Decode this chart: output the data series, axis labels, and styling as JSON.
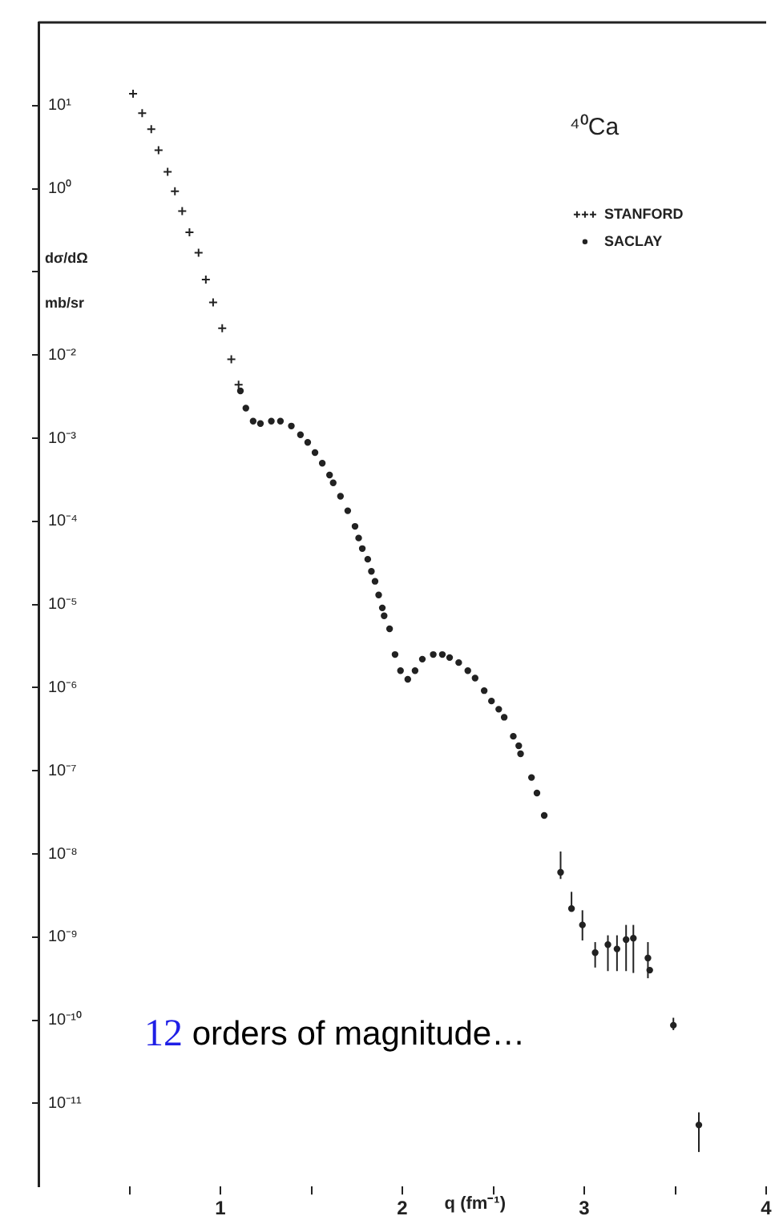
{
  "chart_data": {
    "type": "scatter",
    "title": "⁴⁰Ca",
    "xlabel": "q (fm⁻¹)",
    "ylabel": "dσ/dΩ mb/sr",
    "annotations": [
      "12 orders of magnitude…"
    ],
    "log": "y",
    "xlim": [
      0,
      4
    ],
    "ylim": [
      1e-12,
      100
    ],
    "xticks": [
      {
        "value": 0.5,
        "label": null
      },
      1,
      {
        "value": 1.5,
        "label": null
      },
      2,
      {
        "value": 2.5,
        "label": null
      },
      3,
      {
        "value": 3.5,
        "label": null
      },
      4
    ],
    "yticks": [
      {
        "value": 10,
        "label": "10¹"
      },
      {
        "value": 1,
        "label": "10⁰"
      },
      {
        "value": 0.1,
        "label": null
      },
      {
        "value": 0.01,
        "label": "10⁻²"
      },
      {
        "value": 0.001,
        "label": "10⁻³"
      },
      {
        "value": 0.0001,
        "label": "10⁻⁴"
      },
      {
        "value": 1e-05,
        "label": "10⁻⁵"
      },
      {
        "value": 1e-06,
        "label": "10⁻⁶"
      },
      {
        "value": 1e-07,
        "label": "10⁻⁷"
      },
      {
        "value": 1e-08,
        "label": "10⁻⁸"
      },
      {
        "value": 1e-09,
        "label": "10⁻⁹"
      },
      {
        "value": 1e-10,
        "label": "10⁻¹⁰"
      },
      {
        "value": 1e-11,
        "label": "10⁻¹¹"
      }
    ],
    "grid": false,
    "legend": "top right",
    "series": [
      {
        "name": "STANFORD",
        "color": "#222222",
        "marker": "cross",
        "x": [
          0.52,
          0.57,
          0.62,
          0.66,
          0.71,
          0.75,
          0.79,
          0.83,
          0.88,
          0.92,
          0.96,
          1.01,
          1.06,
          1.1
        ],
        "values": [
          13.9,
          8.1,
          5.2,
          2.9,
          1.6,
          0.93,
          0.54,
          0.3,
          0.17,
          0.081,
          0.043,
          0.021,
          0.0089,
          0.0044
        ]
      },
      {
        "name": "SACLAY",
        "color": "#222222",
        "marker": "circle",
        "x": [
          1.11,
          1.14,
          1.18,
          1.22,
          1.28,
          1.33,
          1.39,
          1.44,
          1.48,
          1.52,
          1.56,
          1.6,
          1.62,
          1.66,
          1.7,
          1.74,
          1.76,
          1.78,
          1.81,
          1.83,
          1.85,
          1.87,
          1.89,
          1.9,
          1.93,
          1.96,
          1.99,
          2.03,
          2.07,
          2.11,
          2.17,
          2.22,
          2.26,
          2.31,
          2.36,
          2.4,
          2.45,
          2.49,
          2.53,
          2.56,
          2.61,
          2.64,
          2.65,
          2.71,
          2.74,
          2.78,
          2.87,
          2.93,
          2.99,
          3.06,
          3.13,
          3.18,
          3.23,
          3.27,
          3.35,
          3.36,
          3.49,
          3.63
        ],
        "values": [
          0.0037,
          0.0023,
          0.0016,
          0.0015,
          0.0016,
          0.0016,
          0.0014,
          0.0011,
          0.00089,
          0.00067,
          0.0005,
          0.00036,
          0.00029,
          0.0002,
          0.000134,
          8.7e-05,
          6.3e-05,
          4.7e-05,
          3.5e-05,
          2.5e-05,
          1.9e-05,
          1.3e-05,
          9.1e-06,
          7.3e-06,
          5.1e-06,
          2.5e-06,
          1.6e-06,
          1.26e-06,
          1.6e-06,
          2.2e-06,
          2.5e-06,
          2.5e-06,
          2.3e-06,
          2e-06,
          1.6e-06,
          1.3e-06,
          9.2e-07,
          6.9e-07,
          5.5e-07,
          4.4e-07,
          2.6e-07,
          2e-07,
          1.6e-07,
          8.3e-08,
          5.4e-08,
          2.9e-08,
          6e-09,
          2.2e-09,
          1.4e-09,
          6.5e-10,
          8.1e-10,
          7.2e-10,
          9.3e-10,
          9.7e-10,
          5.6e-10,
          4e-10,
          8.7e-11,
          5.5e-12
        ],
        "errors": [
          null,
          null,
          null,
          null,
          null,
          null,
          null,
          null,
          null,
          null,
          null,
          null,
          null,
          null,
          null,
          null,
          null,
          null,
          null,
          null,
          null,
          null,
          null,
          null,
          null,
          null,
          null,
          null,
          null,
          null,
          null,
          null,
          null,
          null,
          null,
          null,
          null,
          null,
          null,
          null,
          null,
          null,
          null,
          null,
          null,
          null,
          [
            5e-09,
            1.07e-08
          ],
          [
            2.1e-09,
            3.5e-09
          ],
          [
            9.1e-10,
            2.1e-09
          ],
          [
            4.3e-10,
            8.7e-10
          ],
          [
            3.9e-10,
            1.05e-09
          ],
          [
            3.9e-10,
            1.05e-09
          ],
          [
            3.9e-10,
            1.4e-09
          ],
          [
            3.7e-10,
            1.4e-09
          ],
          [
            3.2e-10,
            8.7e-10
          ],
          null,
          [
            7.6e-11,
            1.07e-10
          ],
          [
            2.6e-12,
            7.8e-12
          ]
        ]
      }
    ]
  }
}
